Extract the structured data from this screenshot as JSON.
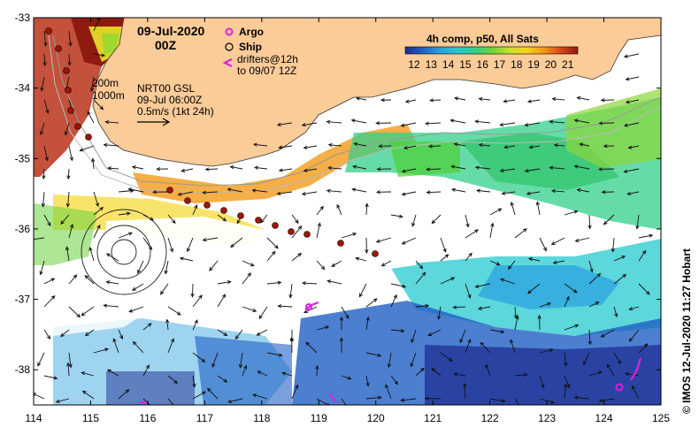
{
  "title": {
    "date": "09-Jul-2020",
    "hour": "00Z"
  },
  "legend": {
    "argo": "Argo",
    "ship": "Ship",
    "drifters_line1": "drifters@12h",
    "drifters_line2": "to 09/07 12Z"
  },
  "colorbar": {
    "title": "4h comp, p50, All Sats",
    "labels": [
      "12",
      "13",
      "14",
      "15",
      "16",
      "17",
      "18",
      "19",
      "20",
      "21"
    ],
    "colors": [
      "#1d2a8f",
      "#1f5fc4",
      "#2a9fe0",
      "#25c9d0",
      "#32d08a",
      "#69d23c",
      "#c6e02a",
      "#f5d61c",
      "#f49a18",
      "#d8481a",
      "#8e1a10"
    ]
  },
  "isobaths": {
    "line1": "200m",
    "line2": "1000m"
  },
  "product": {
    "name": "NRT00 GSL",
    "time": "09-Jul 06:00Z",
    "scale": "0.5m/s (1kt 24h)"
  },
  "axes": {
    "x_ticks": [
      "114",
      "115",
      "116",
      "117",
      "118",
      "119",
      "120",
      "121",
      "122",
      "123",
      "124",
      "125"
    ],
    "y_ticks": [
      "-33",
      "-34",
      "-35",
      "-36",
      "-37",
      "-38"
    ],
    "x_range": [
      114,
      125
    ],
    "y_range": [
      -38.5,
      -33
    ]
  },
  "copyright": "© IMOS 12-Jul-2020 11:27 Hobart",
  "colors": {
    "land": "#fbcb98",
    "ship_track": "#a01408",
    "argo": "#e020e0",
    "drifter": "#e020e0"
  }
}
